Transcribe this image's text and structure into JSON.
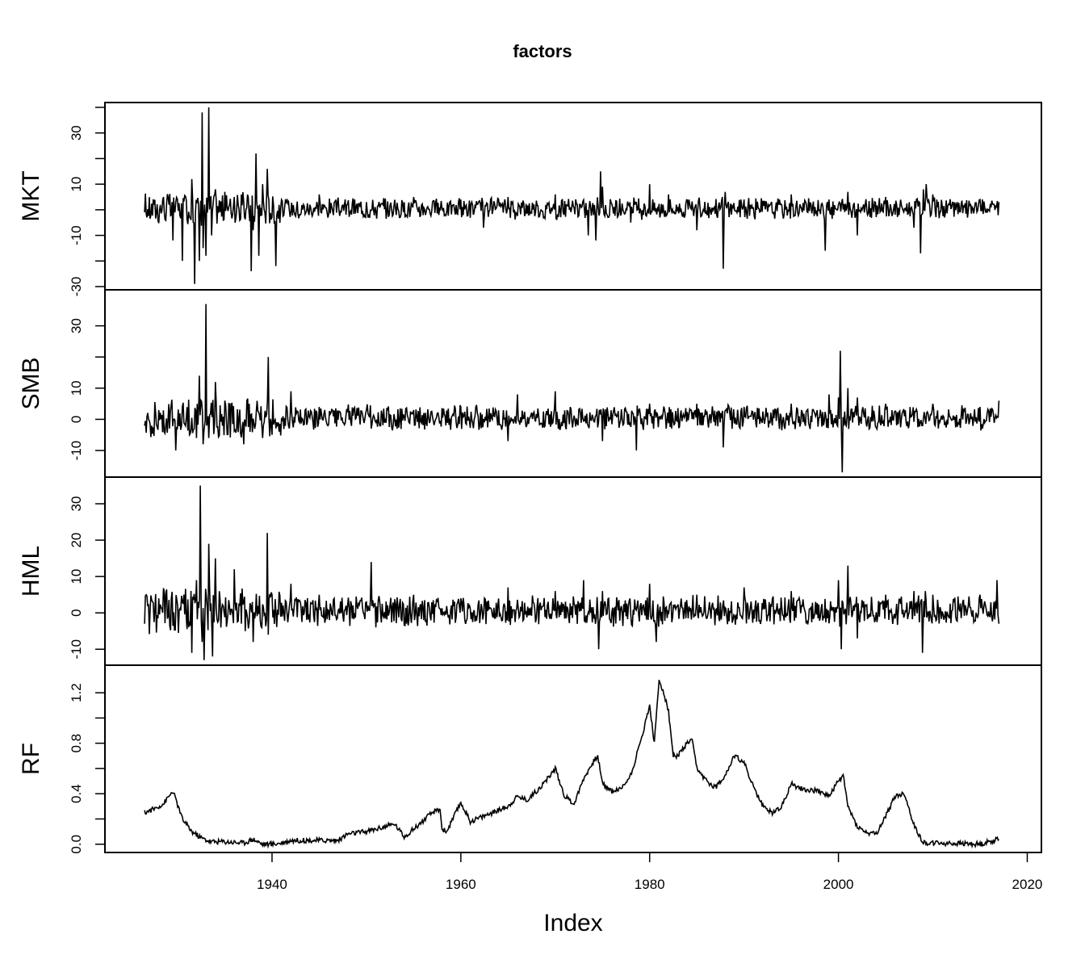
{
  "chart_data": {
    "type": "line",
    "title": "factors",
    "xlabel": "Index",
    "xlim": [
      1926.5,
      2017.1
    ],
    "xticks": [
      1940,
      1960,
      1980,
      2000,
      2020
    ],
    "grid": false,
    "panels": [
      {
        "name": "MKT",
        "ylim": [
          -30,
          40
        ],
        "yticks": [
          -30,
          -20,
          -10,
          0,
          10,
          20,
          30,
          40
        ],
        "ytick_labels": [
          "-30",
          "",
          "-10",
          "",
          "10",
          "",
          "30",
          ""
        ],
        "x": [
          1926.5,
          1927.5,
          1928.5,
          1929.5,
          1929.8,
          1930.5,
          1931.5,
          1931.8,
          1932.3,
          1932.6,
          1932.7,
          1933.0,
          1933.3,
          1933.6,
          1934.0,
          1935.0,
          1936.0,
          1937.0,
          1937.8,
          1938.0,
          1938.3,
          1938.6,
          1939.0,
          1939.5,
          1940.4,
          1941.0,
          1945.0,
          1950.0,
          1955.0,
          1960.0,
          1962.4,
          1965.0,
          1970.0,
          1973.5,
          1974.3,
          1974.8,
          1975.0,
          1978.0,
          1980.0,
          1982.0,
          1985.0,
          1987.7,
          1987.8,
          1988.0,
          1990.0,
          1995.0,
          1998.6,
          1999.0,
          2001.0,
          2002.0,
          2005.0,
          2008.0,
          2008.7,
          2009.0,
          2009.3,
          2010.0,
          2015.0,
          2017.0
        ],
        "values": [
          -1,
          2,
          5,
          -12,
          3,
          -20,
          12,
          -29,
          -20,
          38,
          -15,
          -18,
          40,
          -10,
          8,
          7,
          5,
          3,
          -24,
          -8,
          22,
          -18,
          10,
          16,
          -22,
          4,
          6,
          3,
          5,
          4,
          -7,
          5,
          6,
          -10,
          -12,
          15,
          9,
          -5,
          10,
          6,
          -8,
          5,
          -23,
          7,
          4,
          6,
          -16,
          4,
          7,
          -10,
          5,
          -7,
          -17,
          8,
          10,
          6,
          4,
          3
        ]
      },
      {
        "name": "SMB",
        "ylim": [
          -17.5,
          40
        ],
        "yticks": [
          -10,
          0,
          10,
          20,
          30
        ],
        "ytick_labels": [
          "-10",
          "0",
          "10",
          "",
          "30"
        ],
        "x": [
          1926.5,
          1928.0,
          1929.8,
          1930.5,
          1932.0,
          1932.3,
          1932.7,
          1933.0,
          1933.3,
          1934.0,
          1935.0,
          1937.0,
          1939.0,
          1939.6,
          1940.0,
          1942.0,
          1945.0,
          1950.0,
          1955.0,
          1960.0,
          1965.0,
          1966.0,
          1970.0,
          1975.0,
          1978.6,
          1980.0,
          1985.0,
          1987.8,
          1990.0,
          1995.0,
          1999.0,
          2000.0,
          2000.2,
          2000.4,
          2001.0,
          2002.0,
          2005.0,
          2010.0,
          2015.0,
          2017.0
        ],
        "values": [
          -2,
          3,
          -10,
          4,
          -6,
          14,
          -8,
          37,
          -6,
          12,
          6,
          -8,
          -6,
          20,
          -5,
          9,
          4,
          3,
          3,
          4,
          -7,
          8,
          9,
          -7,
          -10,
          5,
          5,
          -9,
          4,
          5,
          8,
          7,
          22,
          -17,
          10,
          7,
          5,
          5,
          4,
          6
        ]
      },
      {
        "name": "HML",
        "ylim": [
          -13.5,
          36
        ],
        "yticks": [
          -10,
          0,
          10,
          20,
          30
        ],
        "ytick_labels": [
          "-10",
          "0",
          "10",
          "20",
          "30"
        ],
        "x": [
          1926.5,
          1928.0,
          1930.0,
          1931.5,
          1932.0,
          1932.4,
          1932.6,
          1932.8,
          1933.3,
          1933.7,
          1934.0,
          1936.0,
          1938.0,
          1939.5,
          1939.6,
          1940.0,
          1942.0,
          1945.0,
          1950.0,
          1950.5,
          1951.0,
          1955.0,
          1960.0,
          1965.0,
          1970.0,
          1973.0,
          1974.6,
          1975.0,
          1980.0,
          1980.7,
          1985.0,
          1990.0,
          1995.0,
          2000.0,
          2000.3,
          2001.0,
          2002.0,
          2005.0,
          2008.0,
          2008.9,
          2009.2,
          2010.0,
          2015.0,
          2016.8,
          2017.0
        ],
        "values": [
          -3,
          4,
          2,
          -11,
          9,
          35,
          -8,
          -13,
          19,
          -12,
          15,
          12,
          -8,
          22,
          -6,
          5,
          8,
          5,
          3,
          14,
          -4,
          5,
          4,
          7,
          6,
          9,
          -10,
          6,
          8,
          -8,
          5,
          7,
          6,
          9,
          -10,
          13,
          -7,
          5,
          6,
          -11,
          6,
          5,
          5,
          9,
          -3
        ]
      },
      {
        "name": "RF",
        "ylim": [
          -0.04,
          1.38
        ],
        "yticks": [
          0.0,
          0.2,
          0.4,
          0.6,
          0.8,
          1.0,
          1.2
        ],
        "ytick_labels": [
          "0.0",
          "",
          "0.4",
          "",
          "0.8",
          "",
          "1.2"
        ],
        "x": [
          1926.5,
          1927.5,
          1928.5,
          1929.5,
          1930.5,
          1931.5,
          1932.5,
          1933.5,
          1935.0,
          1937.0,
          1938.0,
          1939.0,
          1940.0,
          1941.0,
          1942.0,
          1947.0,
          1948.0,
          1950.0,
          1953.0,
          1954.0,
          1955.0,
          1957.0,
          1957.8,
          1958.0,
          1958.5,
          1960.0,
          1961.0,
          1965.0,
          1966.0,
          1967.0,
          1968.0,
          1969.0,
          1970.0,
          1971.0,
          1972.0,
          1973.0,
          1974.0,
          1974.5,
          1975.0,
          1976.0,
          1977.0,
          1978.0,
          1979.0,
          1980.0,
          1980.5,
          1981.0,
          1981.5,
          1982.0,
          1982.5,
          1983.0,
          1984.0,
          1984.5,
          1985.0,
          1986.0,
          1987.0,
          1988.0,
          1989.0,
          1990.0,
          1991.0,
          1992.0,
          1993.0,
          1994.0,
          1995.0,
          1996.0,
          1998.0,
          1999.0,
          2000.0,
          2000.5,
          2001.0,
          2002.0,
          2003.0,
          2004.0,
          2005.0,
          2006.0,
          2007.0,
          2008.0,
          2009.0,
          2010.0,
          2015.0,
          2016.0,
          2017.0
        ],
        "values": [
          0.25,
          0.28,
          0.32,
          0.42,
          0.2,
          0.1,
          0.05,
          0.02,
          0.02,
          0.01,
          0.04,
          0.0,
          0.0,
          0.01,
          0.03,
          0.03,
          0.08,
          0.1,
          0.16,
          0.06,
          0.12,
          0.25,
          0.28,
          0.12,
          0.1,
          0.33,
          0.18,
          0.3,
          0.38,
          0.35,
          0.42,
          0.5,
          0.6,
          0.38,
          0.32,
          0.52,
          0.65,
          0.7,
          0.48,
          0.42,
          0.44,
          0.55,
          0.8,
          1.1,
          0.8,
          1.3,
          1.2,
          1.05,
          0.7,
          0.7,
          0.8,
          0.82,
          0.6,
          0.5,
          0.45,
          0.55,
          0.7,
          0.65,
          0.45,
          0.3,
          0.25,
          0.3,
          0.48,
          0.44,
          0.42,
          0.38,
          0.5,
          0.55,
          0.3,
          0.14,
          0.09,
          0.08,
          0.22,
          0.38,
          0.4,
          0.15,
          0.01,
          0.01,
          0.0,
          0.02,
          0.04
        ]
      }
    ]
  }
}
